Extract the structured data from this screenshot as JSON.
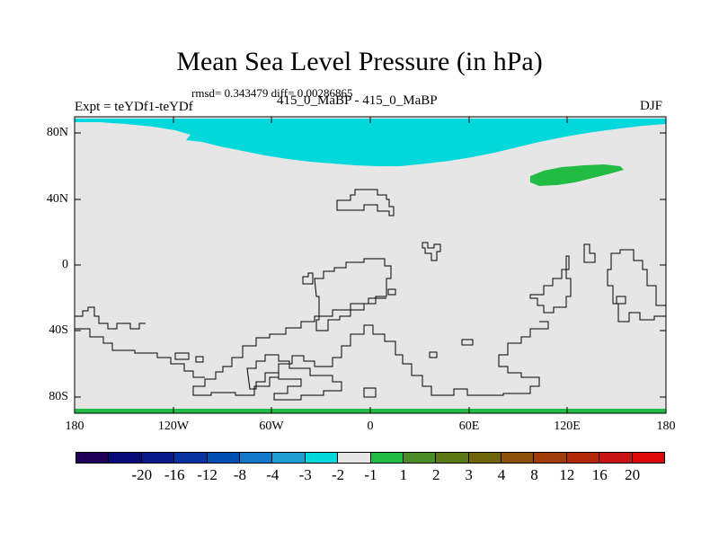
{
  "header": {
    "title": "Mean Sea Level Pressure (in hPa)",
    "stats": "rmsd= 0.343479 diff= 0.00286865",
    "experiment": "Expt = teYDf1-teYDf",
    "center_label": "415_0_MaBP - 415_0_MaBP",
    "season": "DJF"
  },
  "map": {
    "lat_labels": [
      "80N",
      "40N",
      "0",
      "40S",
      "80S"
    ],
    "lon_labels": [
      "180",
      "120W",
      "60W",
      "0",
      "60E",
      "120E",
      "180"
    ],
    "background_color": "#e6e6e6",
    "negative_fill_color": "#00d8dc",
    "positive_fill_color": "#22bb44"
  },
  "colorbar": {
    "colors": [
      "#22005a",
      "#0a0a78",
      "#081a8c",
      "#0a32a0",
      "#0050b4",
      "#1478c8",
      "#1ea0d2",
      "#00d8dc",
      "#e6e6e6",
      "#22bb44",
      "#4a8c28",
      "#5a7814",
      "#6e640a",
      "#8c500a",
      "#a03c0a",
      "#b4280a",
      "#c81414",
      "#dc0a0a"
    ],
    "labels": [
      "-20",
      "-16",
      "-12",
      "-8",
      "-4",
      "-3",
      "-2",
      "-1",
      "1",
      "2",
      "3",
      "4",
      "8",
      "12",
      "16",
      "20"
    ]
  }
}
